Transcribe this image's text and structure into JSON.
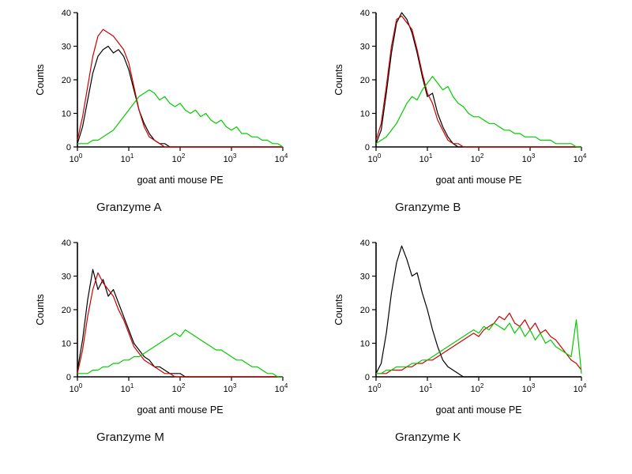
{
  "page": {
    "background": "#ffffff"
  },
  "chart_data": [
    {
      "type": "line",
      "title": "Granzyme A",
      "xlabel": "goat anti mouse PE",
      "ylabel": "Counts",
      "x_scale": "log",
      "xlim_log": [
        0,
        4
      ],
      "ylim": [
        0,
        40
      ],
      "y_ticks": [
        0,
        10,
        20,
        30,
        40
      ],
      "x_ticks_exp": [
        0,
        1,
        2,
        3,
        4
      ],
      "grid": false,
      "legend": "none",
      "series": [
        {
          "name": "black-trace",
          "color": "#000000",
          "x_start": 0,
          "x_step": 0.1,
          "values": [
            1,
            6,
            14,
            22,
            27,
            29,
            30,
            28,
            29,
            27,
            23,
            17,
            11,
            7,
            4,
            2,
            1,
            1,
            0,
            0,
            0,
            0,
            0,
            0,
            0,
            0,
            0,
            0,
            0,
            0,
            0,
            0,
            0,
            0,
            0,
            0,
            0,
            0,
            0,
            0,
            0
          ]
        },
        {
          "name": "red-trace",
          "color": "#cc0000",
          "x_start": 0,
          "x_step": 0.1,
          "values": [
            2,
            9,
            18,
            27,
            33,
            35,
            34,
            33,
            31,
            29,
            25,
            18,
            11,
            6,
            3,
            2,
            1,
            0,
            0,
            0,
            0,
            0,
            0,
            0,
            0,
            0,
            0,
            0,
            0,
            0,
            0,
            0,
            0,
            0,
            0,
            0,
            0,
            0,
            0,
            0,
            0
          ]
        },
        {
          "name": "green-trace",
          "color": "#00cc00",
          "x_start": 0,
          "x_step": 0.1,
          "values": [
            1,
            1,
            1,
            2,
            2,
            3,
            4,
            5,
            7,
            9,
            11,
            13,
            15,
            16,
            17,
            16,
            14,
            15,
            13,
            12,
            13,
            11,
            10,
            11,
            9,
            10,
            8,
            7,
            8,
            6,
            5,
            6,
            4,
            4,
            3,
            3,
            2,
            2,
            1,
            1,
            0
          ]
        }
      ]
    },
    {
      "type": "line",
      "title": "Granzyme B",
      "xlabel": "goat anti mouse PE",
      "ylabel": "Counts",
      "x_scale": "log",
      "xlim_log": [
        0,
        4
      ],
      "ylim": [
        0,
        40
      ],
      "y_ticks": [
        0,
        10,
        20,
        30,
        40
      ],
      "x_ticks_exp": [
        0,
        1,
        2,
        3,
        4
      ],
      "grid": false,
      "legend": "none",
      "series": [
        {
          "name": "black-trace",
          "color": "#000000",
          "x_start": 0,
          "x_step": 0.1,
          "values": [
            1,
            5,
            16,
            28,
            37,
            40,
            38,
            34,
            28,
            21,
            15,
            16,
            10,
            6,
            3,
            1,
            0,
            0,
            0,
            0,
            0,
            0,
            0,
            0,
            0,
            0,
            0,
            0,
            0,
            0,
            0,
            0,
            0,
            0,
            0,
            0,
            0,
            0,
            0,
            0,
            0
          ]
        },
        {
          "name": "red-trace",
          "color": "#cc0000",
          "x_start": 0,
          "x_step": 0.1,
          "values": [
            2,
            7,
            18,
            30,
            38,
            39,
            37,
            35,
            29,
            22,
            16,
            13,
            8,
            5,
            2,
            1,
            1,
            0,
            0,
            0,
            0,
            0,
            0,
            0,
            0,
            0,
            0,
            0,
            0,
            0,
            0,
            0,
            0,
            0,
            0,
            0,
            0,
            0,
            0,
            0,
            0
          ]
        },
        {
          "name": "green-trace",
          "color": "#00cc00",
          "x_start": 0,
          "x_step": 0.1,
          "values": [
            1,
            2,
            3,
            5,
            7,
            10,
            13,
            15,
            14,
            17,
            19,
            21,
            19,
            17,
            18,
            15,
            13,
            12,
            10,
            9,
            9,
            8,
            7,
            7,
            6,
            5,
            5,
            4,
            4,
            3,
            3,
            3,
            2,
            2,
            2,
            1,
            1,
            1,
            1,
            0,
            0
          ]
        }
      ]
    },
    {
      "type": "line",
      "title": "Granzyme M",
      "xlabel": "goat anti mouse PE",
      "ylabel": "Counts",
      "x_scale": "log",
      "xlim_log": [
        0,
        4
      ],
      "ylim": [
        0,
        40
      ],
      "y_ticks": [
        0,
        10,
        20,
        30,
        40
      ],
      "x_ticks_exp": [
        0,
        1,
        2,
        3,
        4
      ],
      "grid": false,
      "legend": "none",
      "series": [
        {
          "name": "black-trace",
          "color": "#000000",
          "x_start": 0,
          "x_step": 0.1,
          "values": [
            2,
            11,
            23,
            32,
            26,
            29,
            24,
            26,
            22,
            18,
            14,
            10,
            8,
            6,
            5,
            3,
            3,
            2,
            1,
            1,
            1,
            0,
            0,
            0,
            0,
            0,
            0,
            0,
            0,
            0,
            0,
            0,
            0,
            0,
            0,
            0,
            0,
            0,
            0,
            0,
            0
          ]
        },
        {
          "name": "red-trace",
          "color": "#cc0000",
          "x_start": 0,
          "x_step": 0.1,
          "values": [
            1,
            8,
            18,
            26,
            31,
            28,
            26,
            24,
            20,
            17,
            13,
            9,
            7,
            5,
            4,
            3,
            2,
            1,
            1,
            0,
            0,
            0,
            0,
            0,
            0,
            0,
            0,
            0,
            0,
            0,
            0,
            0,
            0,
            0,
            0,
            0,
            0,
            0,
            0,
            0,
            0
          ]
        },
        {
          "name": "green-trace",
          "color": "#00cc00",
          "x_start": 0,
          "x_step": 0.1,
          "values": [
            1,
            1,
            1,
            2,
            2,
            3,
            3,
            4,
            4,
            5,
            5,
            6,
            6,
            7,
            8,
            9,
            10,
            11,
            12,
            13,
            12,
            14,
            13,
            12,
            11,
            10,
            9,
            8,
            8,
            7,
            6,
            5,
            5,
            4,
            3,
            3,
            2,
            1,
            1,
            0,
            0
          ]
        }
      ]
    },
    {
      "type": "line",
      "title": "Granzyme K",
      "xlabel": "goat anti mouse PE",
      "ylabel": "Counts",
      "x_scale": "log",
      "xlim_log": [
        0,
        4
      ],
      "ylim": [
        0,
        40
      ],
      "y_ticks": [
        0,
        10,
        20,
        30,
        40
      ],
      "x_ticks_exp": [
        0,
        1,
        2,
        3,
        4
      ],
      "grid": false,
      "legend": "none",
      "series": [
        {
          "name": "black-trace",
          "color": "#000000",
          "x_start": 0,
          "x_step": 0.1,
          "values": [
            1,
            4,
            13,
            25,
            34,
            39,
            35,
            30,
            31,
            25,
            20,
            14,
            9,
            5,
            3,
            2,
            1,
            0,
            0,
            0,
            0,
            0,
            0,
            0,
            0,
            0,
            0,
            0,
            0,
            0,
            0,
            0,
            0,
            0,
            0,
            0,
            0,
            0,
            0,
            0,
            0
          ]
        },
        {
          "name": "red-trace",
          "color": "#cc0000",
          "x_start": 0,
          "x_step": 0.1,
          "values": [
            1,
            1,
            1,
            2,
            2,
            2,
            3,
            3,
            4,
            4,
            5,
            5,
            6,
            7,
            8,
            9,
            10,
            11,
            12,
            13,
            12,
            14,
            15,
            16,
            18,
            17,
            19,
            16,
            15,
            17,
            14,
            16,
            13,
            14,
            12,
            11,
            9,
            7,
            5,
            4,
            2
          ]
        },
        {
          "name": "green-trace",
          "color": "#00cc00",
          "x_start": 0,
          "x_step": 0.1,
          "values": [
            1,
            1,
            2,
            2,
            3,
            3,
            3,
            4,
            4,
            5,
            5,
            6,
            7,
            8,
            9,
            10,
            11,
            12,
            13,
            14,
            13,
            15,
            14,
            16,
            15,
            14,
            16,
            13,
            15,
            12,
            14,
            11,
            13,
            10,
            11,
            9,
            8,
            7,
            6,
            17,
            1
          ]
        }
      ]
    }
  ]
}
